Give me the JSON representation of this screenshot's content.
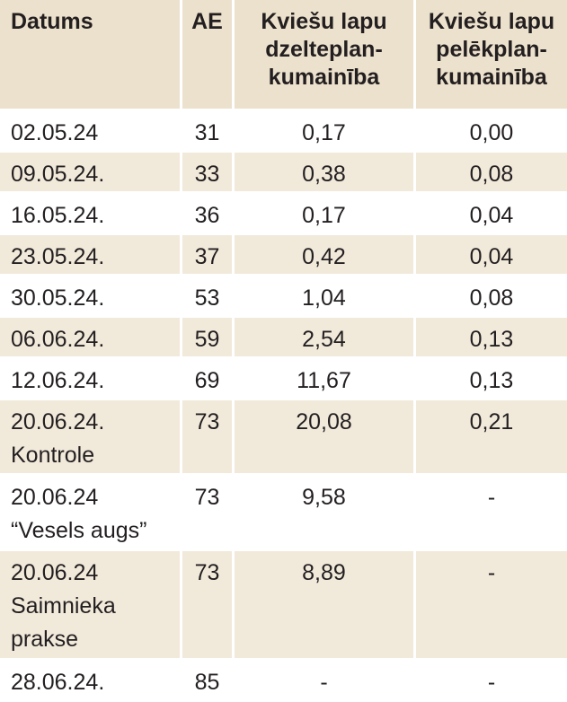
{
  "table": {
    "headers": {
      "date": "Datums",
      "ae": "AE",
      "yellow": [
        "Kviešu lapu",
        "dzelteplan-",
        "kumainība"
      ],
      "grey": [
        "Kviešu lapu",
        "pelēkplan-",
        "kumainība"
      ]
    },
    "rows": [
      {
        "date": [
          "02.05.24"
        ],
        "ae": "31",
        "yellow": "0,17",
        "grey": "0,00"
      },
      {
        "date": [
          "09.05.24."
        ],
        "ae": "33",
        "yellow": "0,38",
        "grey": "0,08"
      },
      {
        "date": [
          "16.05.24."
        ],
        "ae": "36",
        "yellow": "0,17",
        "grey": "0,04"
      },
      {
        "date": [
          "23.05.24."
        ],
        "ae": "37",
        "yellow": "0,42",
        "grey": "0,04"
      },
      {
        "date": [
          "30.05.24."
        ],
        "ae": "53",
        "yellow": "1,04",
        "grey": "0,08"
      },
      {
        "date": [
          "06.06.24."
        ],
        "ae": "59",
        "yellow": "2,54",
        "grey": "0,13"
      },
      {
        "date": [
          "12.06.24."
        ],
        "ae": "69",
        "yellow": "11,67",
        "grey": "0,13"
      },
      {
        "date": [
          "20.06.24.",
          "Kontrole"
        ],
        "ae": "73",
        "yellow": "20,08",
        "grey": "0,21"
      },
      {
        "date": [
          "20.06.24",
          "“Vesels augs”"
        ],
        "ae": "73",
        "yellow": "9,58",
        "grey": "-"
      },
      {
        "date": [
          "20.06.24",
          "Saimnieka",
          "prakse"
        ],
        "ae": "73",
        "yellow": "8,89",
        "grey": "-"
      },
      {
        "date": [
          "28.06.24."
        ],
        "ae": "85",
        "yellow": "-",
        "grey": "-"
      }
    ]
  }
}
